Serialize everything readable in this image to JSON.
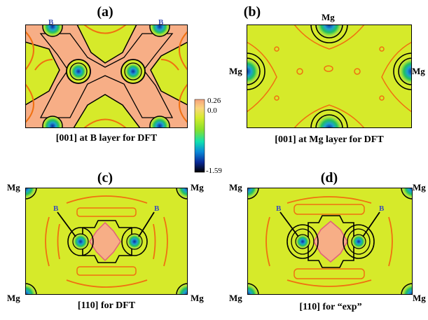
{
  "panels": {
    "a": {
      "label": "(a)",
      "caption": "[001] at B layer for DFT",
      "atoms": [
        "B",
        "B"
      ]
    },
    "b": {
      "label": "(b)",
      "caption": "[001] at Mg layer for DFT",
      "atoms": [
        "Mg",
        "Mg",
        "Mg"
      ]
    },
    "c": {
      "label": "(c)",
      "caption": "[110] for DFT",
      "atoms": [
        "Mg",
        "Mg",
        "Mg",
        "Mg",
        "B",
        "B"
      ]
    },
    "d": {
      "label": "(d)",
      "caption": "[110] for “exp”",
      "atoms": [
        "Mg",
        "Mg",
        "Mg",
        "Mg",
        "B",
        "B"
      ]
    }
  },
  "colorbar": {
    "max_label": "0.26",
    "mid_label": "0.0",
    "min_label": "-1.59",
    "colors": [
      "#f7a27c",
      "#fbd67e",
      "#d6ec2c",
      "#86e02c",
      "#10e0b0",
      "#0a88d8",
      "#0a2a9a",
      "#000000"
    ]
  },
  "map_colors": {
    "background": "#d6ea2a",
    "high": "#f7ae86",
    "contour_orange": "#f07010",
    "contour_pink": "#e0607a",
    "contour_black": "#000000",
    "core_blue": "#1050d0",
    "core_green": "#20c060"
  }
}
